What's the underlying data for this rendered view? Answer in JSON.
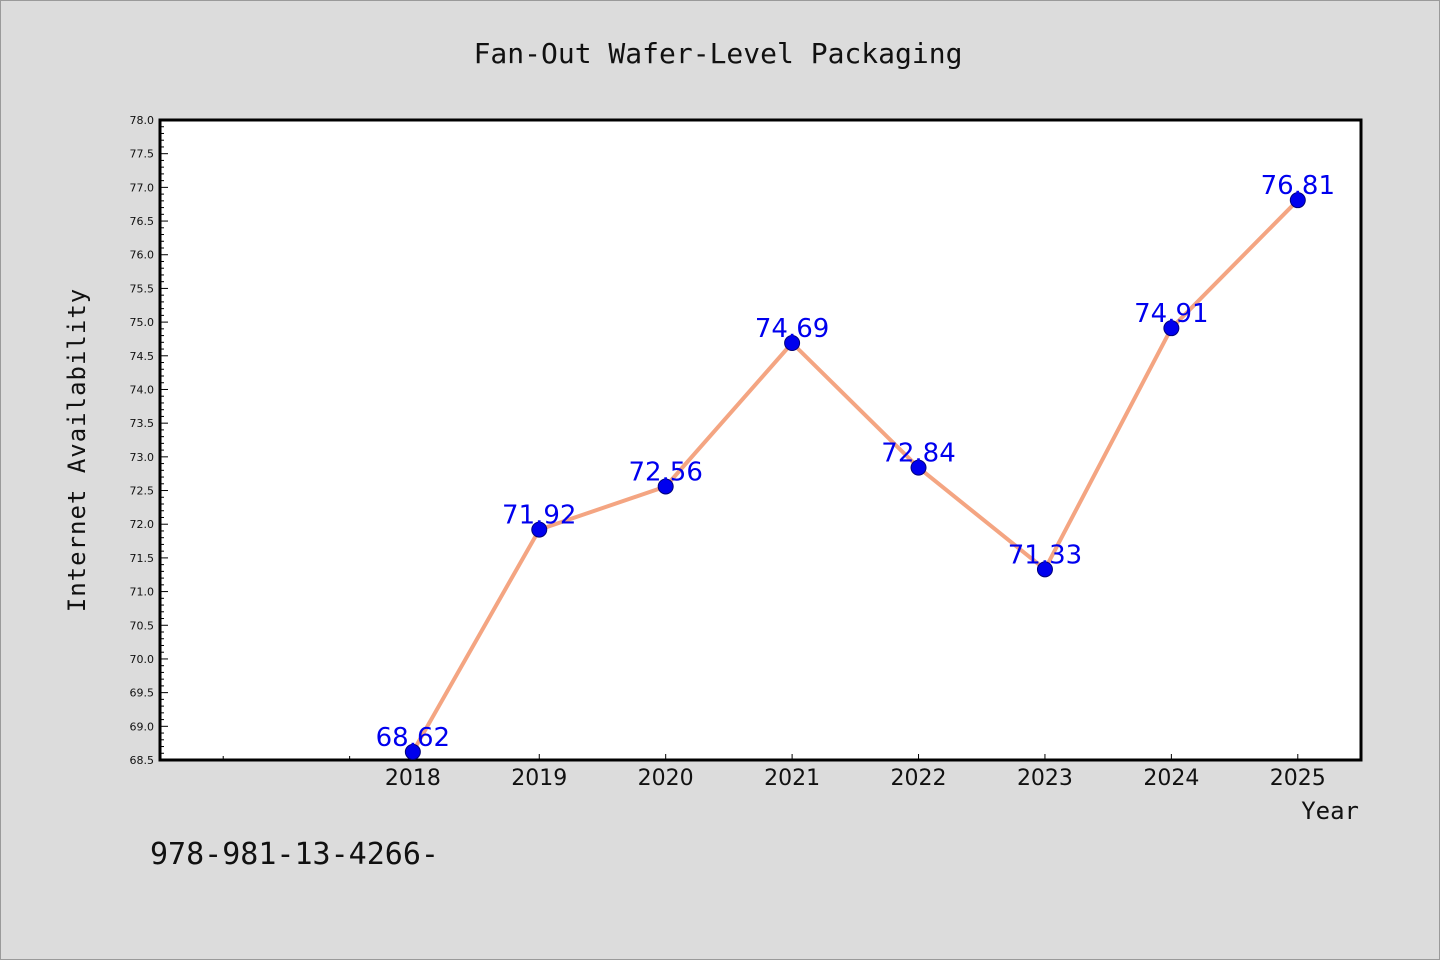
{
  "chart_data": {
    "type": "line",
    "title": "Fan-Out Wafer-Level Packaging",
    "xlabel": "Year",
    "ylabel": "Internet Availability",
    "x_range": [
      2016,
      2025.5
    ],
    "ylim": [
      68.5,
      78.0
    ],
    "y_tick_step": 0.5,
    "x_ticks": [
      2018,
      2019,
      2020,
      2021,
      2022,
      2023,
      2024,
      2025
    ],
    "x_minor_ticks": [
      2016.5,
      2017.5
    ],
    "grid": false,
    "series": [
      {
        "x": [
          2018,
          2019,
          2020,
          2021,
          2022,
          2023,
          2024,
          2025
        ],
        "values": [
          68.62,
          71.92,
          72.56,
          74.69,
          72.84,
          71.33,
          74.91,
          76.81
        ],
        "line_color": "#f4a582",
        "marker_color": "#0000ee",
        "label_color": "#0000ee"
      }
    ]
  },
  "footnote": "978-981-13-4266-"
}
